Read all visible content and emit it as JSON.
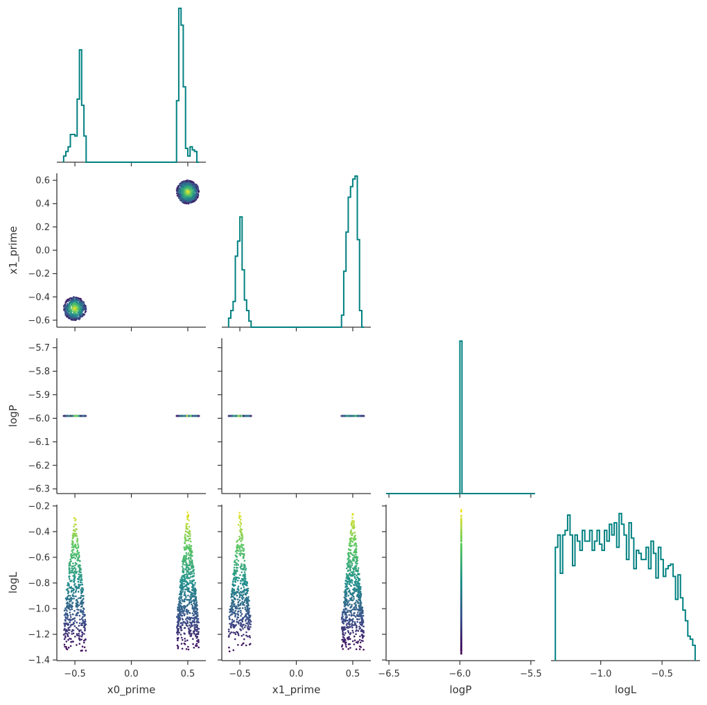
{
  "chart_data": {
    "type": "scatter",
    "title": "",
    "variables": [
      "x0_prime",
      "x1_prime",
      "logP",
      "logL"
    ],
    "colors": {
      "histogram": "#008080",
      "axis": "#333333",
      "colormap": [
        "#440154",
        "#3b528b",
        "#21918c",
        "#5ec962",
        "#fde725"
      ]
    },
    "grid": false,
    "legend": "none",
    "axes": {
      "x0_prime": {
        "label": "x0_prime",
        "range": [
          -0.66,
          0.66
        ],
        "ticks": [
          -0.5,
          0.0,
          0.5
        ],
        "tick_labels": [
          "−0.5",
          "0.0",
          "0.5"
        ]
      },
      "x1_prime": {
        "label": "x1_prime",
        "range": [
          -0.66,
          0.66
        ],
        "ticks": [
          -0.6,
          -0.4,
          -0.2,
          0.0,
          0.2,
          0.4,
          0.6
        ],
        "tick_labels": [
          "−0.6",
          "−0.4",
          "−0.2",
          "0.0",
          "0.2",
          "0.4",
          "0.6"
        ],
        "xticks": [
          -0.5,
          0.0,
          0.5
        ],
        "xtick_labels": [
          "−0.5",
          "0.0",
          "0.5"
        ]
      },
      "logP": {
        "label": "logP",
        "range": [
          -6.52,
          -5.47
        ],
        "y_range": [
          -6.32,
          -5.66
        ],
        "ticks": [
          -6.3,
          -6.2,
          -6.1,
          -6.0,
          -5.9,
          -5.8,
          -5.7
        ],
        "tick_labels": [
          "−6.3",
          "−6.2",
          "−6.1",
          "−6.0",
          "−5.9",
          "−5.8",
          "−5.7"
        ],
        "xticks": [
          -6.5,
          -6.0,
          -5.5
        ],
        "xtick_labels": [
          "−6.5",
          "−6.0",
          "−5.5"
        ]
      },
      "logL": {
        "label": "logL",
        "range": [
          -1.405,
          -0.19
        ],
        "ticks": [
          -1.4,
          -1.2,
          -1.0,
          -0.8,
          -0.6,
          -0.4,
          -0.2
        ],
        "tick_labels": [
          "−1.4",
          "−1.2",
          "−1.0",
          "−0.8",
          "−0.6",
          "−0.4",
          "−0.2"
        ],
        "xticks": [
          -1.0,
          -0.5
        ],
        "xtick_labels": [
          "−1.0",
          "−0.5"
        ]
      }
    },
    "histograms": {
      "x0_prime": {
        "edges": [
          -0.6,
          -0.58,
          -0.56,
          -0.54,
          -0.52,
          -0.5,
          -0.48,
          -0.46,
          -0.44,
          -0.42,
          -0.4,
          -0.38,
          0.38,
          0.4,
          0.42,
          0.44,
          0.46,
          0.48,
          0.5,
          0.52,
          0.54,
          0.56,
          0.58,
          0.6
        ],
        "counts": [
          0.04,
          0.07,
          0.1,
          0.18,
          0.18,
          0.17,
          0.41,
          0.73,
          0.37,
          0.17,
          0.0,
          0.0,
          0.0,
          0.4,
          1.0,
          0.89,
          0.49,
          0.09,
          0.04,
          0.1,
          0.08,
          0.07,
          0.0
        ]
      },
      "x1_prime": {
        "edges": [
          -0.6,
          -0.58,
          -0.56,
          -0.54,
          -0.52,
          -0.5,
          -0.48,
          -0.46,
          -0.44,
          -0.42,
          -0.4,
          0.4,
          0.42,
          0.44,
          0.46,
          0.48,
          0.5,
          0.52,
          0.54,
          0.56,
          0.58,
          0.6
        ],
        "counts": [
          0.06,
          0.11,
          0.17,
          0.47,
          0.57,
          0.73,
          0.38,
          0.18,
          0.11,
          0.04,
          0.0,
          0.08,
          0.37,
          0.63,
          0.86,
          0.93,
          0.98,
          1.0,
          0.58,
          0.11,
          0.0
        ]
      },
      "logP": {
        "edges": [
          -6.52,
          -6.0,
          -5.985,
          -5.47
        ],
        "counts": [
          0.0,
          1.0,
          0.0
        ]
      },
      "logL": {
        "edges": [
          -1.37,
          -1.35,
          -1.33,
          -1.31,
          -1.29,
          -1.27,
          -1.25,
          -1.23,
          -1.21,
          -1.19,
          -1.17,
          -1.15,
          -1.13,
          -1.11,
          -1.09,
          -1.07,
          -1.05,
          -1.03,
          -1.01,
          -0.99,
          -0.97,
          -0.95,
          -0.93,
          -0.91,
          -0.89,
          -0.87,
          -0.85,
          -0.83,
          -0.81,
          -0.79,
          -0.77,
          -0.75,
          -0.73,
          -0.71,
          -0.69,
          -0.67,
          -0.65,
          -0.63,
          -0.61,
          -0.59,
          -0.57,
          -0.55,
          -0.53,
          -0.51,
          -0.49,
          -0.47,
          -0.45,
          -0.43,
          -0.41,
          -0.39,
          -0.37,
          -0.35,
          -0.33,
          -0.31,
          -0.29,
          -0.27,
          -0.25,
          -0.23
        ],
        "counts": [
          0.74,
          0.82,
          0.57,
          0.82,
          0.85,
          0.95,
          0.82,
          0.62,
          0.82,
          0.78,
          0.72,
          0.85,
          0.78,
          0.78,
          0.85,
          0.72,
          0.78,
          0.85,
          0.76,
          0.72,
          0.85,
          0.78,
          0.89,
          0.82,
          0.9,
          0.74,
          0.96,
          0.89,
          0.82,
          0.66,
          0.9,
          0.8,
          0.6,
          0.72,
          0.7,
          0.66,
          0.66,
          0.74,
          0.6,
          0.78,
          0.7,
          0.54,
          0.74,
          0.66,
          0.55,
          0.6,
          0.62,
          0.63,
          0.55,
          0.4,
          0.56,
          0.41,
          0.33,
          0.26,
          0.16,
          0.14,
          0.1
        ]
      }
    },
    "scatter": {
      "clusters": [
        {
          "x0_center": -0.5,
          "x1_center": -0.5,
          "radius": 0.1,
          "n": 500
        },
        {
          "x0_center": 0.5,
          "x1_center": 0.5,
          "radius": 0.1,
          "n": 700
        }
      ],
      "logP_value": -5.99,
      "logL_range": [
        -1.36,
        -0.22
      ]
    }
  }
}
